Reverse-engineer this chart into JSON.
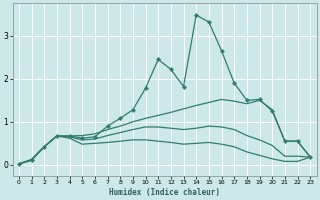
{
  "xlabel": "Humidex (Indice chaleur)",
  "background_color": "#cce8e8",
  "grid_color": "#ffffff",
  "line_color": "#2e7d6e",
  "x_values": [
    0,
    1,
    2,
    3,
    4,
    5,
    6,
    7,
    8,
    9,
    10,
    11,
    12,
    13,
    14,
    15,
    16,
    17,
    18,
    19,
    20,
    21,
    22,
    23
  ],
  "line_main": [
    0.02,
    0.12,
    0.42,
    0.67,
    0.67,
    0.62,
    0.65,
    0.9,
    1.08,
    1.28,
    1.78,
    2.45,
    2.22,
    1.82,
    3.48,
    3.32,
    2.65,
    1.9,
    1.5,
    1.52,
    1.25,
    0.55,
    0.55,
    0.18
  ],
  "line_upper": [
    0.02,
    0.12,
    0.42,
    0.67,
    0.67,
    0.68,
    0.72,
    0.82,
    0.9,
    1.0,
    1.08,
    1.15,
    1.22,
    1.3,
    1.38,
    1.45,
    1.52,
    1.48,
    1.42,
    1.5,
    1.28,
    0.55,
    0.55,
    0.18
  ],
  "line_mid": [
    0.02,
    0.12,
    0.42,
    0.67,
    0.65,
    0.58,
    0.6,
    0.68,
    0.75,
    0.82,
    0.88,
    0.88,
    0.85,
    0.82,
    0.85,
    0.9,
    0.88,
    0.82,
    0.68,
    0.58,
    0.45,
    0.2,
    0.2,
    0.18
  ],
  "line_lower": [
    0.02,
    0.1,
    0.42,
    0.67,
    0.62,
    0.48,
    0.5,
    0.52,
    0.55,
    0.58,
    0.58,
    0.55,
    0.52,
    0.48,
    0.5,
    0.52,
    0.48,
    0.42,
    0.3,
    0.22,
    0.14,
    0.08,
    0.08,
    0.18
  ],
  "ylim": [
    -0.25,
    3.75
  ],
  "xlim": [
    -0.5,
    23.5
  ],
  "yticks": [
    0,
    1,
    2,
    3
  ],
  "xticks": [
    0,
    1,
    2,
    3,
    4,
    5,
    6,
    7,
    8,
    9,
    10,
    11,
    12,
    13,
    14,
    15,
    16,
    17,
    18,
    19,
    20,
    21,
    22,
    23
  ]
}
